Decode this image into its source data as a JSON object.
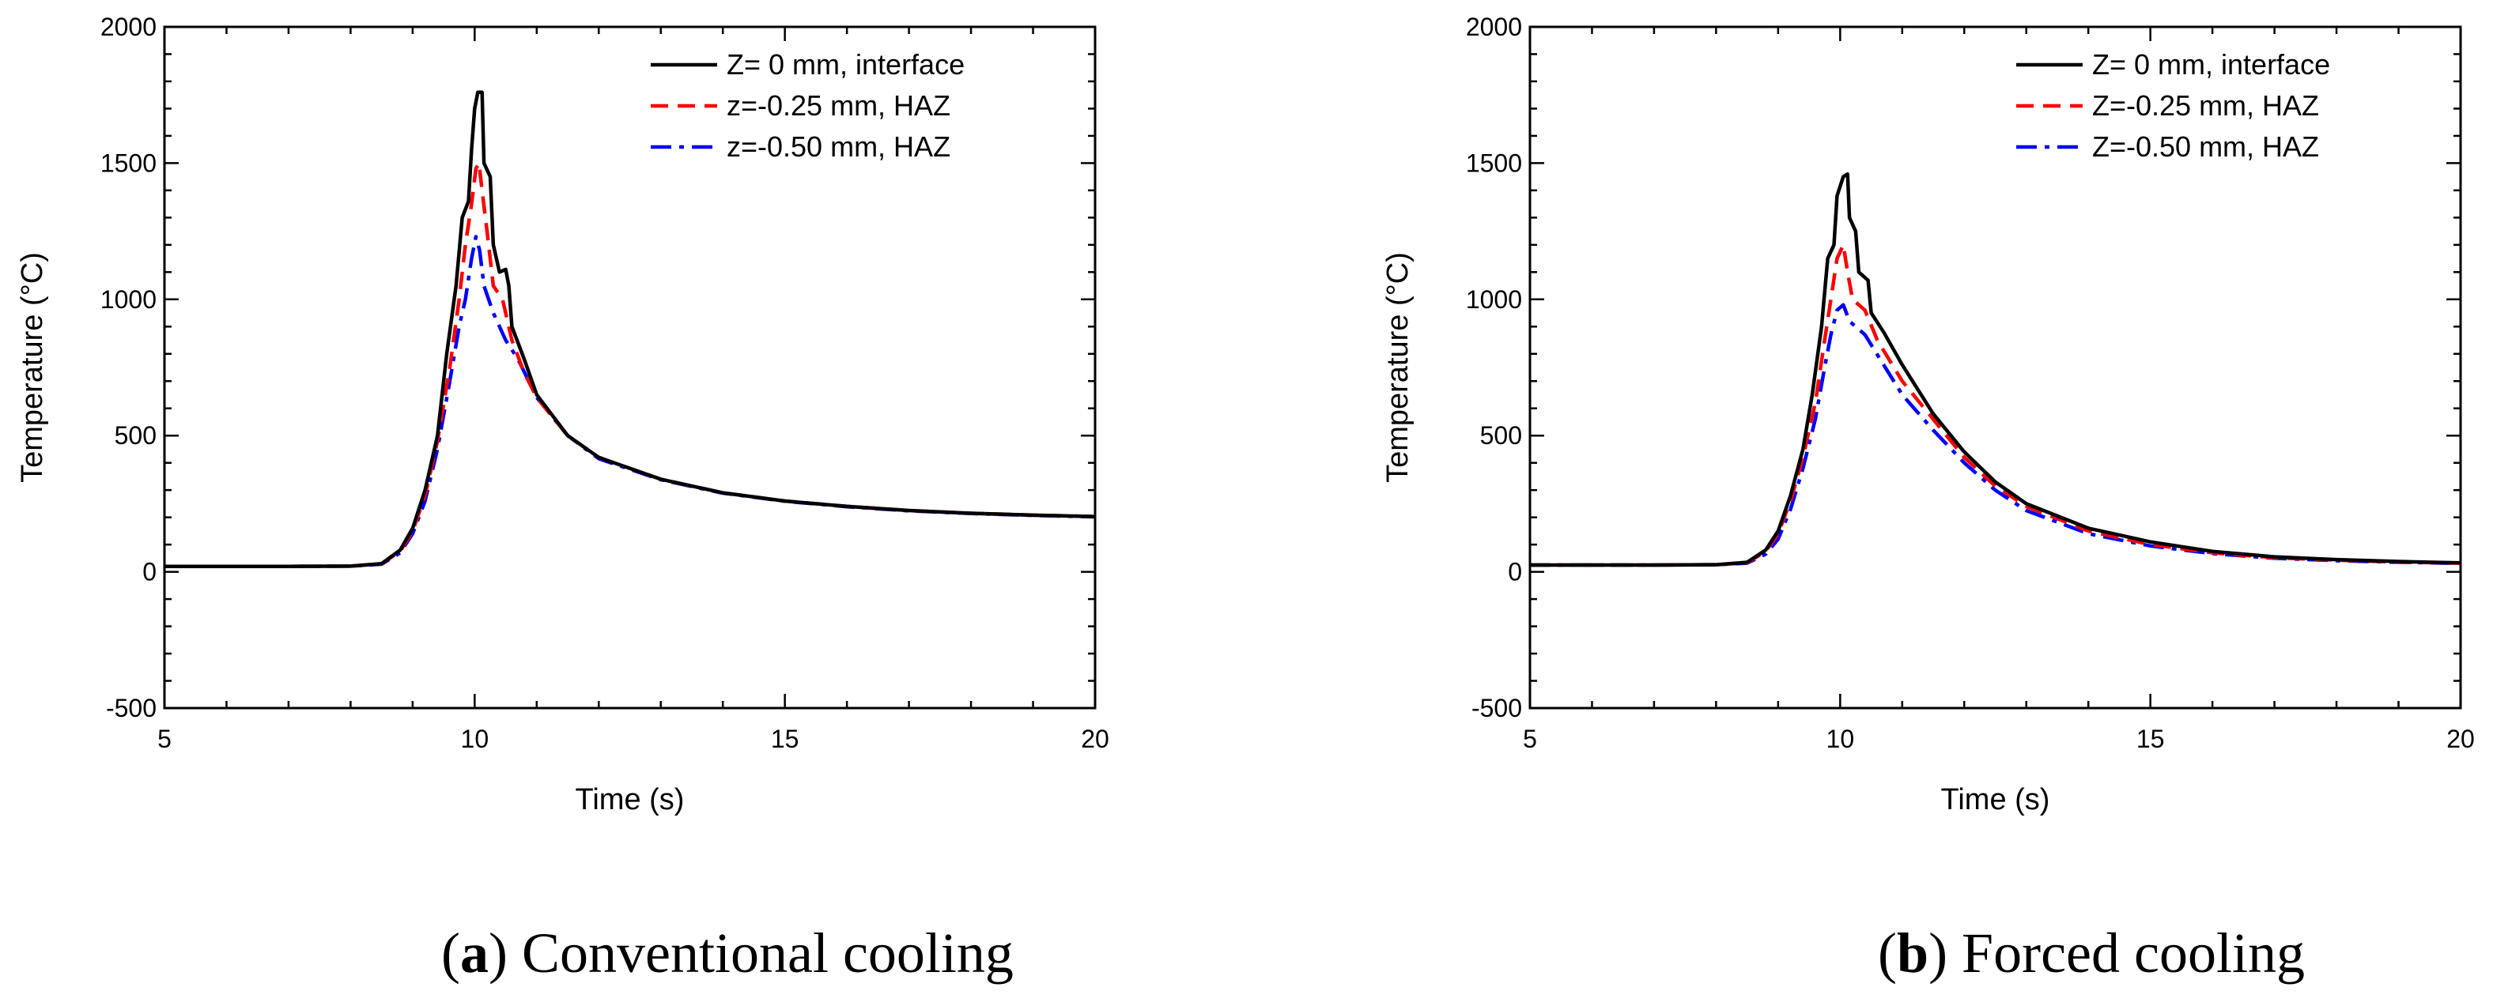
{
  "chart_data": [
    {
      "type": "line",
      "panel_letter": "a",
      "caption": "Conventional cooling",
      "xlabel": "Time (s)",
      "ylabel": "Temperature (°C)",
      "xlim": [
        5,
        20
      ],
      "ylim": [
        -500,
        2000
      ],
      "x_ticks": [
        5,
        10,
        15,
        20
      ],
      "x_tick_labels": [
        "5",
        "10",
        "15",
        "20"
      ],
      "y_ticks": [
        -500,
        0,
        500,
        1000,
        1500,
        2000
      ],
      "y_tick_labels": [
        "-500",
        "0",
        "500",
        "1000",
        "1500",
        "2000"
      ],
      "grid": false,
      "legend_position": "top-right",
      "series": [
        {
          "name": "Z= 0 mm, interface",
          "color": "#000000",
          "style": "solid",
          "points": [
            [
              5,
              20
            ],
            [
              6,
              20
            ],
            [
              7,
              20
            ],
            [
              8,
              21
            ],
            [
              8.5,
              30
            ],
            [
              8.8,
              80
            ],
            [
              9.0,
              160
            ],
            [
              9.2,
              300
            ],
            [
              9.4,
              500
            ],
            [
              9.55,
              800
            ],
            [
              9.7,
              1050
            ],
            [
              9.8,
              1300
            ],
            [
              9.9,
              1360
            ],
            [
              9.95,
              1550
            ],
            [
              10.0,
              1700
            ],
            [
              10.05,
              1760
            ],
            [
              10.12,
              1760
            ],
            [
              10.15,
              1500
            ],
            [
              10.25,
              1450
            ],
            [
              10.3,
              1200
            ],
            [
              10.4,
              1100
            ],
            [
              10.5,
              1110
            ],
            [
              10.55,
              1050
            ],
            [
              10.6,
              900
            ],
            [
              10.8,
              780
            ],
            [
              11.0,
              650
            ],
            [
              11.5,
              500
            ],
            [
              12,
              420
            ],
            [
              13,
              340
            ],
            [
              14,
              290
            ],
            [
              15,
              260
            ],
            [
              16,
              240
            ],
            [
              17,
              225
            ],
            [
              18,
              215
            ],
            [
              19,
              208
            ],
            [
              20,
              203
            ]
          ]
        },
        {
          "name": "z=-0.25 mm, HAZ",
          "color": "#ff0000",
          "style": "dashed",
          "points": [
            [
              5,
              20
            ],
            [
              6,
              20
            ],
            [
              7,
              20
            ],
            [
              8,
              21
            ],
            [
              8.5,
              30
            ],
            [
              8.8,
              75
            ],
            [
              9.0,
              150
            ],
            [
              9.2,
              280
            ],
            [
              9.4,
              480
            ],
            [
              9.6,
              750
            ],
            [
              9.75,
              1000
            ],
            [
              9.85,
              1200
            ],
            [
              9.95,
              1350
            ],
            [
              10.02,
              1480
            ],
            [
              10.07,
              1500
            ],
            [
              10.12,
              1400
            ],
            [
              10.2,
              1250
            ],
            [
              10.3,
              1050
            ],
            [
              10.45,
              1000
            ],
            [
              10.6,
              850
            ],
            [
              10.8,
              730
            ],
            [
              11.0,
              640
            ],
            [
              11.5,
              500
            ],
            [
              12,
              420
            ],
            [
              13,
              340
            ],
            [
              14,
              290
            ],
            [
              15,
              260
            ],
            [
              16,
              240
            ],
            [
              17,
              225
            ],
            [
              18,
              215
            ],
            [
              19,
              208
            ],
            [
              20,
              203
            ]
          ]
        },
        {
          "name": "z=-0.50 mm, HAZ",
          "color": "#0000ff",
          "style": "dashdot",
          "points": [
            [
              5,
              20
            ],
            [
              6,
              20
            ],
            [
              7,
              20
            ],
            [
              8,
              21
            ],
            [
              8.5,
              28
            ],
            [
              8.8,
              70
            ],
            [
              9.0,
              140
            ],
            [
              9.2,
              260
            ],
            [
              9.4,
              450
            ],
            [
              9.6,
              700
            ],
            [
              9.75,
              900
            ],
            [
              9.85,
              1000
            ],
            [
              9.95,
              1150
            ],
            [
              10.02,
              1230
            ],
            [
              10.08,
              1180
            ],
            [
              10.15,
              1050
            ],
            [
              10.3,
              950
            ],
            [
              10.5,
              850
            ],
            [
              10.7,
              780
            ],
            [
              11.0,
              640
            ],
            [
              11.5,
              500
            ],
            [
              12,
              415
            ],
            [
              13,
              338
            ],
            [
              14,
              289
            ],
            [
              15,
              259
            ],
            [
              16,
              239
            ],
            [
              17,
              224
            ],
            [
              18,
              214
            ],
            [
              19,
              207
            ],
            [
              20,
              202
            ]
          ]
        }
      ]
    },
    {
      "type": "line",
      "panel_letter": "b",
      "caption": "Forced cooling",
      "xlabel": "Time (s)",
      "ylabel": "Temperature (°C)",
      "xlim": [
        5,
        20
      ],
      "ylim": [
        -500,
        2000
      ],
      "x_ticks": [
        5,
        10,
        15,
        20
      ],
      "x_tick_labels": [
        "5",
        "10",
        "15",
        "20"
      ],
      "y_ticks": [
        -500,
        0,
        500,
        1000,
        1500,
        2000
      ],
      "y_tick_labels": [
        "-500",
        "0",
        "500",
        "1000",
        "1500",
        "2000"
      ],
      "grid": false,
      "legend_position": "top-right",
      "series": [
        {
          "name": "Z= 0 mm, interface",
          "color": "#000000",
          "style": "solid",
          "points": [
            [
              5,
              25
            ],
            [
              6,
              25
            ],
            [
              7,
              25
            ],
            [
              8,
              26
            ],
            [
              8.5,
              35
            ],
            [
              8.8,
              80
            ],
            [
              9.0,
              150
            ],
            [
              9.2,
              280
            ],
            [
              9.4,
              450
            ],
            [
              9.55,
              650
            ],
            [
              9.7,
              900
            ],
            [
              9.8,
              1150
            ],
            [
              9.9,
              1200
            ],
            [
              9.95,
              1380
            ],
            [
              10.05,
              1450
            ],
            [
              10.12,
              1460
            ],
            [
              10.15,
              1300
            ],
            [
              10.25,
              1250
            ],
            [
              10.3,
              1100
            ],
            [
              10.45,
              1070
            ],
            [
              10.5,
              950
            ],
            [
              10.7,
              880
            ],
            [
              11.0,
              760
            ],
            [
              11.5,
              580
            ],
            [
              12,
              440
            ],
            [
              12.5,
              330
            ],
            [
              13,
              250
            ],
            [
              14,
              160
            ],
            [
              15,
              110
            ],
            [
              16,
              75
            ],
            [
              17,
              55
            ],
            [
              18,
              45
            ],
            [
              19,
              38
            ],
            [
              20,
              33
            ]
          ]
        },
        {
          "name": "Z=-0.25 mm, HAZ",
          "color": "#ff0000",
          "style": "dashed",
          "points": [
            [
              5,
              25
            ],
            [
              6,
              25
            ],
            [
              7,
              25
            ],
            [
              8,
              26
            ],
            [
              8.5,
              33
            ],
            [
              8.8,
              75
            ],
            [
              9.0,
              140
            ],
            [
              9.2,
              260
            ],
            [
              9.4,
              420
            ],
            [
              9.6,
              620
            ],
            [
              9.75,
              850
            ],
            [
              9.85,
              1000
            ],
            [
              9.95,
              1150
            ],
            [
              10.05,
              1200
            ],
            [
              10.12,
              1100
            ],
            [
              10.2,
              1000
            ],
            [
              10.4,
              960
            ],
            [
              10.6,
              850
            ],
            [
              11.0,
              700
            ],
            [
              11.5,
              560
            ],
            [
              12,
              420
            ],
            [
              12.5,
              315
            ],
            [
              13,
              240
            ],
            [
              14,
              150
            ],
            [
              15,
              100
            ],
            [
              16,
              70
            ],
            [
              17,
              52
            ],
            [
              18,
              43
            ],
            [
              19,
              36
            ],
            [
              20,
              32
            ]
          ]
        },
        {
          "name": "Z=-0.50 mm, HAZ",
          "color": "#0000ff",
          "style": "dashdot",
          "points": [
            [
              5,
              25
            ],
            [
              6,
              25
            ],
            [
              7,
              25
            ],
            [
              8,
              26
            ],
            [
              8.5,
              32
            ],
            [
              8.8,
              65
            ],
            [
              9.0,
              120
            ],
            [
              9.2,
              230
            ],
            [
              9.4,
              380
            ],
            [
              9.6,
              560
            ],
            [
              9.75,
              750
            ],
            [
              9.85,
              870
            ],
            [
              9.95,
              960
            ],
            [
              10.05,
              980
            ],
            [
              10.15,
              920
            ],
            [
              10.4,
              870
            ],
            [
              10.7,
              760
            ],
            [
              11.0,
              650
            ],
            [
              11.5,
              520
            ],
            [
              12,
              400
            ],
            [
              12.5,
              300
            ],
            [
              13,
              225
            ],
            [
              14,
              140
            ],
            [
              15,
              95
            ],
            [
              16,
              67
            ],
            [
              17,
              50
            ],
            [
              18,
              41
            ],
            [
              19,
              35
            ],
            [
              20,
              31
            ]
          ]
        }
      ]
    }
  ]
}
